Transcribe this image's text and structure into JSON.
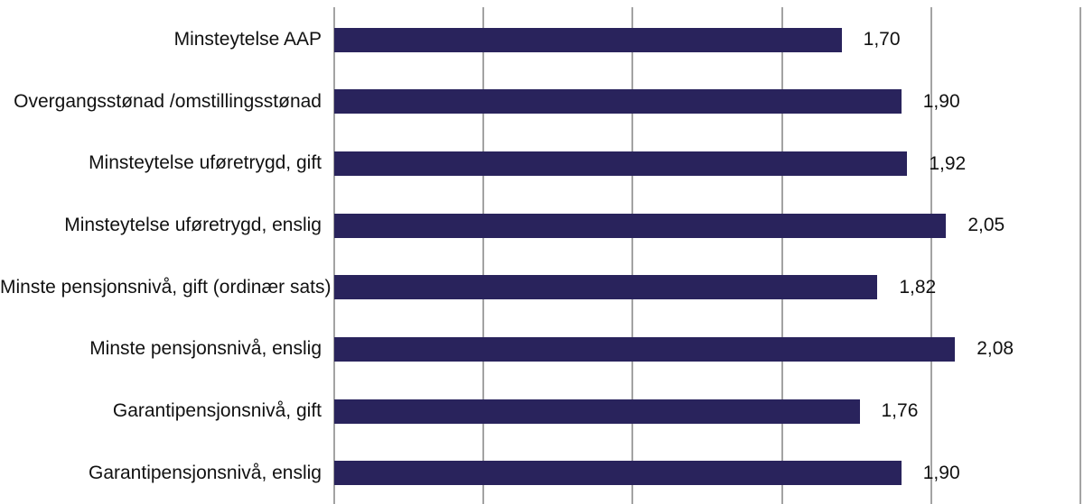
{
  "chart_data": {
    "type": "bar",
    "orientation": "horizontal",
    "title": "",
    "xlabel": "",
    "ylabel": "",
    "categories": [
      "Minsteytelse AAP",
      "Overgangsstønad /omstillingsstønad",
      "Minsteytelse uføretrygd, gift",
      "Minsteytelse uføretrygd, enslig",
      "Minste pensjonsnivå, gift (ordinær sats)",
      "Minste pensjonsnivå, enslig",
      "Garantipensjonsnivå, gift",
      "Garantipensjonsnivå, enslig"
    ],
    "values": [
      1.7,
      1.9,
      1.92,
      2.05,
      1.82,
      2.08,
      1.76,
      1.9
    ],
    "value_labels": [
      "1,70",
      "1,90",
      "1,92",
      "2,05",
      "1,82",
      "2,08",
      "1,76",
      "1,90"
    ],
    "xlim": [
      0,
      2.5
    ],
    "grid": true,
    "gridline_step": 0.5,
    "legend": "none",
    "bar_color": "#29235c",
    "gridline_color": "#a3a3a3",
    "text_color": "#111111"
  }
}
